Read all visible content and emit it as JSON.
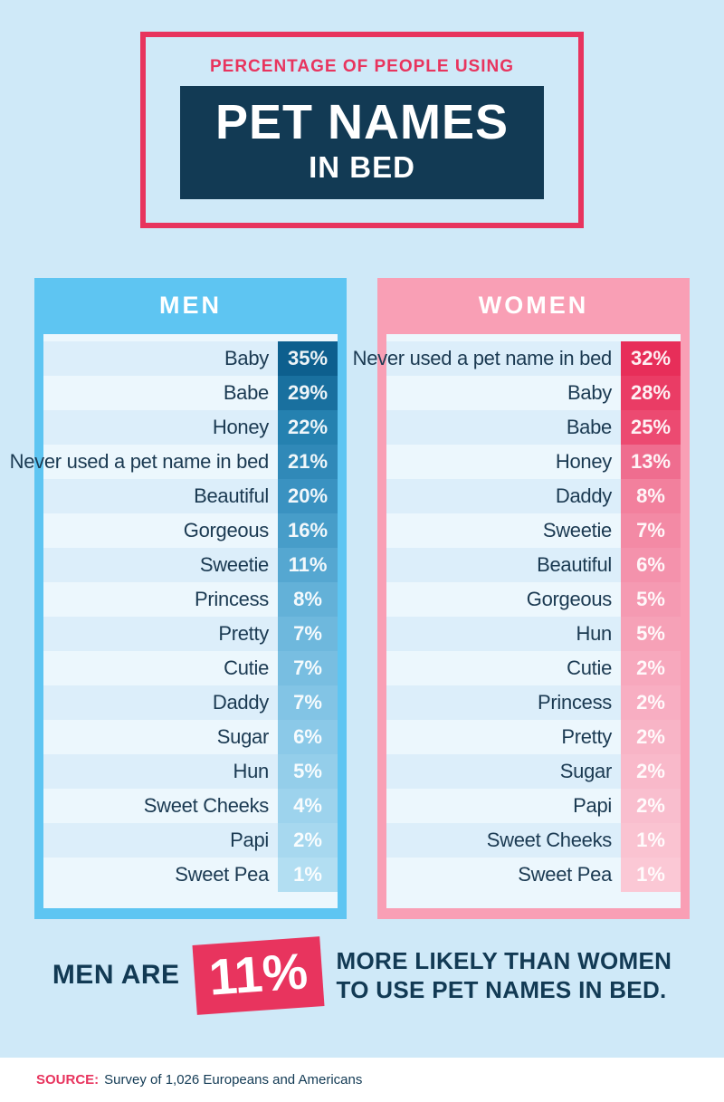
{
  "theme": {
    "page_bg": "#cfe9f8",
    "accent_pink": "#e8345e",
    "navy": "#123a54",
    "list_bg": "#ecf7fd",
    "row_stripe": "#dceefa",
    "label_color": "#1b3a52"
  },
  "header": {
    "kicker": "PERCENTAGE OF PEOPLE USING",
    "title_line1": "PET NAMES",
    "title_line2": "IN BED"
  },
  "chart_data": {
    "type": "table",
    "title": "Percentage of People Using Pet Names in Bed",
    "groups": [
      {
        "label": "MEN",
        "panel_color": "#5ec5f2",
        "rows": [
          {
            "name": "Baby",
            "value": 35,
            "display": "35%",
            "color": "#0d5f8e"
          },
          {
            "name": "Babe",
            "value": 29,
            "display": "29%",
            "color": "#19709f"
          },
          {
            "name": "Honey",
            "value": 22,
            "display": "22%",
            "color": "#2581b0"
          },
          {
            "name": "Never used a pet name in bed",
            "value": 21,
            "display": "21%",
            "color": "#3089b8"
          },
          {
            "name": "Beautiful",
            "value": 20,
            "display": "20%",
            "color": "#3a92c1"
          },
          {
            "name": "Gorgeous",
            "value": 16,
            "display": "16%",
            "color": "#479dc9"
          },
          {
            "name": "Sweetie",
            "value": 11,
            "display": "11%",
            "color": "#55a7d1"
          },
          {
            "name": "Princess",
            "value": 8,
            "display": "8%",
            "color": "#63b1d8"
          },
          {
            "name": "Pretty",
            "value": 7,
            "display": "7%",
            "color": "#6eb8dd"
          },
          {
            "name": "Cutie",
            "value": 7,
            "display": "7%",
            "color": "#78bee1"
          },
          {
            "name": "Daddy",
            "value": 7,
            "display": "7%",
            "color": "#82c4e5"
          },
          {
            "name": "Sugar",
            "value": 6,
            "display": "6%",
            "color": "#8bc9e8"
          },
          {
            "name": "Hun",
            "value": 5,
            "display": "5%",
            "color": "#94ceea"
          },
          {
            "name": "Sweet Cheeks",
            "value": 4,
            "display": "4%",
            "color": "#9dd3ed"
          },
          {
            "name": "Papi",
            "value": 2,
            "display": "2%",
            "color": "#a7d8ef"
          },
          {
            "name": "Sweet Pea",
            "value": 1,
            "display": "1%",
            "color": "#b2def2"
          }
        ]
      },
      {
        "label": "WOMEN",
        "panel_color": "#f99fb5",
        "rows": [
          {
            "name": "Never used a pet name in bed",
            "value": 32,
            "display": "32%",
            "color": "#e72e59"
          },
          {
            "name": "Baby",
            "value": 28,
            "display": "28%",
            "color": "#ea3c65"
          },
          {
            "name": "Babe",
            "value": 25,
            "display": "25%",
            "color": "#ec4a71"
          },
          {
            "name": "Honey",
            "value": 13,
            "display": "13%",
            "color": "#ef6d8f"
          },
          {
            "name": "Daddy",
            "value": 8,
            "display": "8%",
            "color": "#f2809d"
          },
          {
            "name": "Sweetie",
            "value": 7,
            "display": "7%",
            "color": "#f38aa5"
          },
          {
            "name": "Beautiful",
            "value": 6,
            "display": "6%",
            "color": "#f492ac"
          },
          {
            "name": "Gorgeous",
            "value": 5,
            "display": "5%",
            "color": "#f59ab2"
          },
          {
            "name": "Hun",
            "value": 5,
            "display": "5%",
            "color": "#f6a1b7"
          },
          {
            "name": "Cutie",
            "value": 2,
            "display": "2%",
            "color": "#f7a8bd"
          },
          {
            "name": "Princess",
            "value": 2,
            "display": "2%",
            "color": "#f8aec2"
          },
          {
            "name": "Pretty",
            "value": 2,
            "display": "2%",
            "color": "#f8b4c6"
          },
          {
            "name": "Sugar",
            "value": 2,
            "display": "2%",
            "color": "#f9b9ca"
          },
          {
            "name": "Papi",
            "value": 2,
            "display": "2%",
            "color": "#f9bece"
          },
          {
            "name": "Sweet Cheeks",
            "value": 1,
            "display": "1%",
            "color": "#fac3d1"
          },
          {
            "name": "Sweet Pea",
            "value": 1,
            "display": "1%",
            "color": "#fbc8d5"
          }
        ]
      }
    ]
  },
  "callout": {
    "prefix": "MEN ARE",
    "highlight": "11%",
    "line1": "MORE LIKELY THAN WOMEN",
    "line2": "TO USE PET NAMES IN BED."
  },
  "source": {
    "label": "SOURCE:",
    "text": "Survey of 1,026 Europeans and Americans"
  }
}
